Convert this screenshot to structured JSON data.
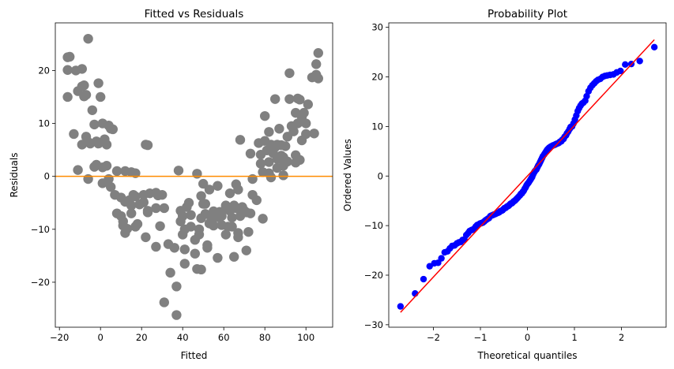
{
  "chart_data": [
    {
      "type": "scatter",
      "title": "Fitted vs Residuals",
      "xlabel": "Fitted",
      "ylabel": "Residuals",
      "xlim": [
        -22,
        113
      ],
      "ylim": [
        -28.5,
        29
      ],
      "xticks": [
        -20,
        0,
        20,
        40,
        60,
        80,
        100
      ],
      "yticks": [
        -20,
        -10,
        0,
        10,
        20
      ],
      "grid": false,
      "reference_line": {
        "y": 0,
        "color": "#ff8c00"
      },
      "point_color": "#808080",
      "points": [
        [
          -16,
          22.5
        ],
        [
          -15,
          22.6
        ],
        [
          -16,
          20.1
        ],
        [
          -16,
          15
        ],
        [
          -12,
          20
        ],
        [
          -9,
          20.3
        ],
        [
          -8,
          17.2
        ],
        [
          -6,
          26
        ],
        [
          -9,
          17
        ],
        [
          -11,
          16.1
        ],
        [
          -8,
          15.1
        ],
        [
          -7,
          15.4
        ],
        [
          -4,
          12.5
        ],
        [
          -13,
          8
        ],
        [
          -7,
          7.5
        ],
        [
          -9,
          6
        ],
        [
          -6,
          6.5
        ],
        [
          -3,
          9.8
        ],
        [
          -2,
          6.6
        ],
        [
          -1,
          17.6
        ],
        [
          0,
          15
        ],
        [
          1,
          10
        ],
        [
          2,
          7
        ],
        [
          4,
          9.6
        ],
        [
          5,
          9
        ],
        [
          6,
          8.9
        ],
        [
          -5,
          6.2
        ],
        [
          -1,
          6.2
        ],
        [
          3,
          6
        ],
        [
          1,
          1.7
        ],
        [
          -2,
          2.2
        ],
        [
          -3,
          1.8
        ],
        [
          -11,
          1.2
        ],
        [
          -6,
          -0.5
        ],
        [
          1,
          -1.3
        ],
        [
          3,
          2
        ],
        [
          4,
          -0.5
        ],
        [
          8,
          1
        ],
        [
          5,
          -2
        ],
        [
          7,
          -3.5
        ],
        [
          8,
          -7
        ],
        [
          10,
          -7.5
        ],
        [
          10,
          -4
        ],
        [
          11,
          -8.5
        ],
        [
          11,
          -9.3
        ],
        [
          12,
          -4.8
        ],
        [
          12,
          1
        ],
        [
          13,
          -9.9
        ],
        [
          12,
          -10.7
        ],
        [
          14,
          -4.5
        ],
        [
          15,
          -7
        ],
        [
          15,
          -5.5
        ],
        [
          16,
          -3.5
        ],
        [
          17,
          -3.8
        ],
        [
          17,
          -9.5
        ],
        [
          15,
          0.8
        ],
        [
          17,
          0.6
        ],
        [
          18,
          -9
        ],
        [
          19,
          -5.3
        ],
        [
          21,
          -4.9
        ],
        [
          21,
          -3.5
        ],
        [
          22,
          6
        ],
        [
          23,
          5.9
        ],
        [
          22,
          -11.5
        ],
        [
          23,
          -6.5
        ],
        [
          23,
          -6.8
        ],
        [
          24,
          -3.2
        ],
        [
          27,
          -3.1
        ],
        [
          28,
          -3.6
        ],
        [
          27,
          -6
        ],
        [
          27,
          -13.3
        ],
        [
          29,
          -9.4
        ],
        [
          30,
          -3.5
        ],
        [
          31,
          -6
        ],
        [
          31,
          -23.8
        ],
        [
          33,
          -12.8
        ],
        [
          34,
          -18.2
        ],
        [
          36,
          -13.5
        ],
        [
          37,
          -26.2
        ],
        [
          37,
          -20.8
        ],
        [
          38,
          1.1
        ],
        [
          39,
          -6.5
        ],
        [
          39,
          -8.5
        ],
        [
          40,
          -7.5
        ],
        [
          40,
          -11
        ],
        [
          41,
          -13.8
        ],
        [
          41,
          -16.5
        ],
        [
          41,
          -10
        ],
        [
          42,
          -5.8
        ],
        [
          43,
          -5
        ],
        [
          44,
          -7.3
        ],
        [
          44,
          -9.5
        ],
        [
          46,
          -12
        ],
        [
          46,
          -14.6
        ],
        [
          47,
          -17.5
        ],
        [
          47,
          0.5
        ],
        [
          48,
          -11
        ],
        [
          48,
          -10
        ],
        [
          49,
          -7.9
        ],
        [
          49,
          -17.6
        ],
        [
          49,
          -3.7
        ],
        [
          50,
          -1.4
        ],
        [
          50,
          -5.2
        ],
        [
          51,
          -5.2
        ],
        [
          51,
          -7.1
        ],
        [
          52,
          -13.5
        ],
        [
          52,
          -13
        ],
        [
          53,
          -2.5
        ],
        [
          53,
          -8.9
        ],
        [
          54,
          -7.9
        ],
        [
          55,
          -7.3
        ],
        [
          55,
          -6.6
        ],
        [
          55,
          -9.3
        ],
        [
          56,
          -7.6
        ],
        [
          57,
          -1.8
        ],
        [
          57,
          -15.4
        ],
        [
          57,
          -7.7
        ],
        [
          58,
          -6.7
        ],
        [
          59,
          -7.5
        ],
        [
          59,
          -9.2
        ],
        [
          61,
          -11
        ],
        [
          61,
          -5.5
        ],
        [
          62,
          -6.2
        ],
        [
          62,
          -9.5
        ],
        [
          63,
          -3.2
        ],
        [
          63,
          -6.5
        ],
        [
          64,
          -7.8
        ],
        [
          64,
          -9.5
        ],
        [
          65,
          -15.2
        ],
        [
          65,
          -5.5
        ],
        [
          66,
          -6
        ],
        [
          66,
          -1.5
        ],
        [
          67,
          -10.7
        ],
        [
          67,
          -11.5
        ],
        [
          67,
          -2.5
        ],
        [
          68,
          -7.5
        ],
        [
          68,
          6.9
        ],
        [
          69,
          -5.8
        ],
        [
          70,
          -6.5
        ],
        [
          71,
          -6.8
        ],
        [
          71,
          -14
        ],
        [
          72,
          -10.5
        ],
        [
          73,
          4.3
        ],
        [
          73,
          -7
        ],
        [
          74,
          -3.5
        ],
        [
          74,
          -0.5
        ],
        [
          76,
          -4.5
        ],
        [
          77,
          6.3
        ],
        [
          78,
          4.1
        ],
        [
          78,
          2.4
        ],
        [
          79,
          0.8
        ],
        [
          79,
          -8
        ],
        [
          80,
          11.4
        ],
        [
          80,
          6.7
        ],
        [
          81,
          4.9
        ],
        [
          82,
          2.7
        ],
        [
          82,
          8.4
        ],
        [
          82,
          0.6
        ],
        [
          83,
          6
        ],
        [
          83,
          -0.2
        ],
        [
          84,
          4.4
        ],
        [
          85,
          14.6
        ],
        [
          85,
          5.5
        ],
        [
          86,
          3.3
        ],
        [
          86,
          6
        ],
        [
          86,
          1.6
        ],
        [
          87,
          9
        ],
        [
          88,
          5.9
        ],
        [
          88,
          3.9
        ],
        [
          89,
          3.6
        ],
        [
          89,
          2
        ],
        [
          89,
          0.2
        ],
        [
          90,
          5.7
        ],
        [
          91,
          7.5
        ],
        [
          91,
          2.8
        ],
        [
          92,
          14.6
        ],
        [
          92,
          19.5
        ],
        [
          93,
          9.5
        ],
        [
          94,
          8.5
        ],
        [
          95,
          4
        ],
        [
          95,
          2.6
        ],
        [
          95,
          12
        ],
        [
          96,
          14.7
        ],
        [
          96,
          10
        ],
        [
          97,
          14.5
        ],
        [
          97,
          3.1
        ],
        [
          98,
          11.2
        ],
        [
          98,
          6.8
        ],
        [
          99,
          12
        ],
        [
          100,
          10
        ],
        [
          100,
          8
        ],
        [
          101,
          13.6
        ],
        [
          103,
          18.7
        ],
        [
          104,
          8.1
        ],
        [
          105,
          21.2
        ],
        [
          105,
          19.2
        ],
        [
          106,
          23.3
        ],
        [
          106,
          18.5
        ]
      ]
    },
    {
      "type": "scatter",
      "title": "Probability Plot",
      "xlabel": "Theoretical quantiles",
      "ylabel": "Ordered Values",
      "xlim": [
        -2.95,
        2.95
      ],
      "ylim": [
        -30.5,
        30.9
      ],
      "xticks": [
        -2,
        -1,
        0,
        1,
        2
      ],
      "yticks": [
        -30,
        -20,
        -10,
        0,
        10,
        20,
        30
      ],
      "grid": false,
      "point_color": "#0000ff",
      "fit_line": {
        "x": [
          -2.7,
          2.7
        ],
        "y": [
          -27.5,
          27.5
        ],
        "color": "#ff0000"
      },
      "points": [
        [
          -2.7,
          -26.3
        ],
        [
          -2.39,
          -23.7
        ],
        [
          -2.21,
          -20.8
        ],
        [
          -2.08,
          -18.2
        ],
        [
          -1.98,
          -17.6
        ],
        [
          -1.9,
          -17.5
        ],
        [
          -1.83,
          -16.6
        ],
        [
          -1.76,
          -15.4
        ],
        [
          -1.7,
          -15.2
        ],
        [
          -1.65,
          -14.6
        ],
        [
          -1.6,
          -14.1
        ],
        [
          -1.55,
          -14
        ],
        [
          -1.5,
          -13.6
        ],
        [
          -1.46,
          -13.4
        ],
        [
          -1.42,
          -13.3
        ],
        [
          -1.38,
          -12.9
        ],
        [
          -1.34,
          -12.8
        ],
        [
          -1.3,
          -11.9
        ],
        [
          -1.26,
          -11.5
        ],
        [
          -1.23,
          -11.1
        ],
        [
          -1.19,
          -10.9
        ],
        [
          -1.16,
          -10.8
        ],
        [
          -1.13,
          -10.6
        ],
        [
          -1.1,
          -10.2
        ],
        [
          -1.07,
          -9.9
        ],
        [
          -1.04,
          -9.8
        ],
        [
          -1.01,
          -9.6
        ],
        [
          -0.98,
          -9.5
        ],
        [
          -0.95,
          -9.4
        ],
        [
          -0.92,
          -9.2
        ],
        [
          -0.9,
          -9
        ],
        [
          -0.87,
          -8.8
        ],
        [
          -0.84,
          -8.6
        ],
        [
          -0.82,
          -8.5
        ],
        [
          -0.79,
          -8.1
        ],
        [
          -0.77,
          -8
        ],
        [
          -0.74,
          -7.9
        ],
        [
          -0.72,
          -7.8
        ],
        [
          -0.69,
          -7.7
        ],
        [
          -0.67,
          -7.6
        ],
        [
          -0.65,
          -7.5
        ],
        [
          -0.62,
          -7.4
        ],
        [
          -0.6,
          -7.3
        ],
        [
          -0.58,
          -7.1
        ],
        [
          -0.55,
          -7
        ],
        [
          -0.53,
          -6.9
        ],
        [
          -0.51,
          -6.7
        ],
        [
          -0.49,
          -6.5
        ],
        [
          -0.46,
          -6.4
        ],
        [
          -0.44,
          -6.2
        ],
        [
          -0.42,
          -6.1
        ],
        [
          -0.4,
          -6
        ],
        [
          -0.38,
          -5.8
        ],
        [
          -0.36,
          -5.6
        ],
        [
          -0.33,
          -5.5
        ],
        [
          -0.31,
          -5.3
        ],
        [
          -0.29,
          -5.1
        ],
        [
          -0.27,
          -5
        ],
        [
          -0.25,
          -4.8
        ],
        [
          -0.23,
          -4.6
        ],
        [
          -0.21,
          -4.4
        ],
        [
          -0.19,
          -4.2
        ],
        [
          -0.16,
          -3.9
        ],
        [
          -0.14,
          -3.6
        ],
        [
          -0.12,
          -3.5
        ],
        [
          -0.1,
          -3.2
        ],
        [
          -0.08,
          -3
        ],
        [
          -0.06,
          -2.6
        ],
        [
          -0.04,
          -2.3
        ],
        [
          -0.02,
          -1.9
        ],
        [
          0,
          -1.6
        ],
        [
          0.02,
          -1.4
        ],
        [
          0.04,
          -1.1
        ],
        [
          0.06,
          -0.8
        ],
        [
          0.08,
          -0.5
        ],
        [
          0.1,
          -0.2
        ],
        [
          0.12,
          0.3
        ],
        [
          0.14,
          0.7
        ],
        [
          0.16,
          1
        ],
        [
          0.19,
          1.3
        ],
        [
          0.21,
          1.7
        ],
        [
          0.23,
          2.1
        ],
        [
          0.25,
          2.4
        ],
        [
          0.27,
          2.8
        ],
        [
          0.29,
          3.2
        ],
        [
          0.31,
          3.6
        ],
        [
          0.33,
          4
        ],
        [
          0.36,
          4.4
        ],
        [
          0.38,
          4.7
        ],
        [
          0.4,
          5
        ],
        [
          0.42,
          5.3
        ],
        [
          0.44,
          5.5
        ],
        [
          0.46,
          5.7
        ],
        [
          0.49,
          5.9
        ],
        [
          0.51,
          6
        ],
        [
          0.53,
          6.1
        ],
        [
          0.55,
          6.2
        ],
        [
          0.58,
          6.3
        ],
        [
          0.6,
          6.4
        ],
        [
          0.62,
          6.5
        ],
        [
          0.65,
          6.6
        ],
        [
          0.67,
          6.7
        ],
        [
          0.69,
          6.9
        ],
        [
          0.72,
          7
        ],
        [
          0.74,
          7.3
        ],
        [
          0.77,
          7.5
        ],
        [
          0.79,
          7.9
        ],
        [
          0.82,
          8.2
        ],
        [
          0.84,
          8.6
        ],
        [
          0.87,
          9
        ],
        [
          0.9,
          9.5
        ],
        [
          0.92,
          9.9
        ],
        [
          0.95,
          10
        ],
        [
          0.98,
          10.6
        ],
        [
          1.01,
          11.4
        ],
        [
          1.04,
          12.2
        ],
        [
          1.07,
          13.1
        ],
        [
          1.1,
          13.7
        ],
        [
          1.13,
          14.2
        ],
        [
          1.16,
          14.6
        ],
        [
          1.19,
          14.8
        ],
        [
          1.23,
          15.2
        ],
        [
          1.26,
          16.1
        ],
        [
          1.3,
          17.1
        ],
        [
          1.34,
          17.8
        ],
        [
          1.38,
          18.3
        ],
        [
          1.42,
          18.7
        ],
        [
          1.46,
          19.1
        ],
        [
          1.5,
          19.4
        ],
        [
          1.55,
          19.6
        ],
        [
          1.6,
          20
        ],
        [
          1.65,
          20.2
        ],
        [
          1.7,
          20.3
        ],
        [
          1.76,
          20.4
        ],
        [
          1.83,
          20.5
        ],
        [
          1.9,
          20.9
        ],
        [
          1.98,
          21.2
        ],
        [
          2.08,
          22.5
        ],
        [
          2.21,
          22.6
        ],
        [
          2.39,
          23.2
        ],
        [
          2.7,
          26
        ]
      ]
    }
  ]
}
